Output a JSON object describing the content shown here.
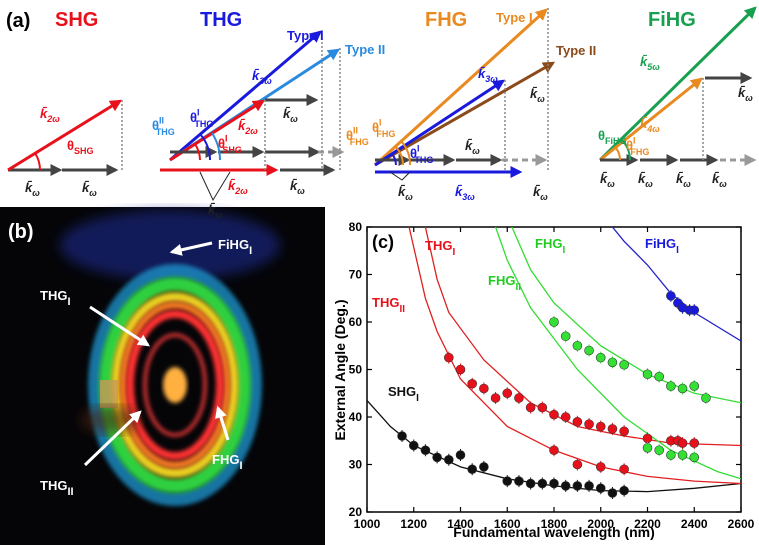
{
  "panel_labels": [
    "(a)",
    "(b)"
  ],
  "diagram": {
    "headings": [
      {
        "text": "SHG",
        "color": "#e8101a"
      },
      {
        "text": "THG",
        "color": "#1a1adc"
      },
      {
        "text": "FHG",
        "color": "#e88a20"
      },
      {
        "text": "FiHG",
        "color": "#18a050"
      }
    ],
    "labels": [
      {
        "text": "k̄",
        "sub": "2ω",
        "color": "#e8101a"
      },
      {
        "text": "θ",
        "sub": "SHG",
        "color": "#e8101a"
      },
      {
        "text": "k̄",
        "sub": "ω",
        "color": "#222"
      },
      {
        "text": "k̄",
        "sub": "ω",
        "color": "#222"
      },
      {
        "text": "Type I",
        "color": "#1a1adc"
      },
      {
        "text": "Type II",
        "color": "#2a8ae0"
      },
      {
        "text": "k̄",
        "sub": "3ω",
        "color": "#1a1adc"
      },
      {
        "text": "k̄",
        "sub": "2ω",
        "color": "#e8101a"
      },
      {
        "text": "k̄",
        "sub": "ω",
        "color": "#222"
      },
      {
        "text": "θ",
        "sup": "I",
        "sub": "THG",
        "color": "#1a1adc"
      },
      {
        "text": "θ",
        "sup": "II",
        "sub": "THG",
        "color": "#2a8ae0"
      },
      {
        "text": "θ",
        "sup": "I",
        "sub": "SHG",
        "color": "#e8101a"
      },
      {
        "text": "k̄",
        "sub": "2ω",
        "color": "#e8101a"
      },
      {
        "text": "k̄",
        "sub": "ω",
        "color": "#222"
      },
      {
        "text": "k̄",
        "sub": "ω",
        "color": "#222"
      },
      {
        "text": "Type I",
        "color": "#e88a20"
      },
      {
        "text": "Type II",
        "color": "#8b4a1a"
      },
      {
        "text": "k̄",
        "sub": "3ω",
        "color": "#1a1adc"
      },
      {
        "text": "k̄",
        "sub": "ω",
        "color": "#222"
      },
      {
        "text": "θ",
        "sup": "II",
        "sub": "FHG",
        "color": "#e88a20"
      },
      {
        "text": "θ",
        "sup": "I",
        "sub": "FHG",
        "color": "#e88a20"
      },
      {
        "text": "θ",
        "sup": "I",
        "sub": "THG",
        "color": "#1a1adc"
      },
      {
        "text": "k̄",
        "sub": "ω",
        "color": "#222"
      },
      {
        "text": "k̄",
        "sub": "ω",
        "color": "#222"
      },
      {
        "text": "k̄",
        "sub": "3ω",
        "color": "#1a1adc"
      },
      {
        "text": "k̄",
        "sub": "ω",
        "color": "#222"
      },
      {
        "text": "k̄",
        "sub": "5ω",
        "color": "#18a050"
      },
      {
        "text": "k̄",
        "sub": "4ω",
        "color": "#e88a20"
      },
      {
        "text": "k̄",
        "sub": "ω",
        "color": "#222"
      },
      {
        "text": "θ",
        "sub": "FiHG",
        "color": "#18a050"
      },
      {
        "text": "θ",
        "sup": "I",
        "sub": "FHG",
        "color": "#e88a20"
      },
      {
        "text": "k̄",
        "sub": "ω",
        "color": "#222"
      },
      {
        "text": "k̄",
        "sub": "ω",
        "color": "#222"
      },
      {
        "text": "k̄",
        "sub": "ω",
        "color": "#222"
      },
      {
        "text": "k̄",
        "sub": "ω",
        "color": "#222"
      }
    ]
  },
  "photo_labels": [
    {
      "text": "FiHG",
      "sub": "I"
    },
    {
      "text": "THG",
      "sub": "I"
    },
    {
      "text": "THG",
      "sub": "II"
    },
    {
      "text": "FHG",
      "sub": "I"
    }
  ],
  "chart_data": {
    "type": "scatter",
    "panel_label": "(c)",
    "x_label": "Fundamental wavelength (nm)",
    "y_label": "External Angle (Deg.)",
    "xlim": [
      1000,
      2600
    ],
    "ylim": [
      20,
      80
    ],
    "xticks": [
      1000,
      1200,
      1400,
      1600,
      1800,
      2000,
      2200,
      2400,
      2600
    ],
    "yticks": [
      20,
      30,
      40,
      50,
      60,
      70,
      80
    ],
    "annotations": [
      {
        "text": "THG",
        "sub": "I",
        "color": "#e8101a"
      },
      {
        "text": "THG",
        "sub": "II",
        "color": "#e8101a"
      },
      {
        "text": "FHG",
        "sub": "I",
        "color": "#22cc22"
      },
      {
        "text": "FHG",
        "sub": "II",
        "color": "#22cc22"
      },
      {
        "text": "FiHG",
        "sub": "I",
        "color": "#1a1adc"
      },
      {
        "text": "SHG",
        "sub": "I",
        "color": "#111111"
      }
    ],
    "series": [
      {
        "mode": "points",
        "color": "#111111",
        "x": [
          1150,
          1200,
          1250,
          1300,
          1350,
          1400,
          1450,
          1500,
          1600,
          1650,
          1700,
          1750,
          1800,
          1850,
          1900,
          1950,
          2000,
          2050,
          2100
        ],
        "values": [
          36,
          34,
          33,
          31.5,
          31,
          32,
          29,
          29.5,
          26.5,
          26.5,
          26,
          26,
          26,
          25.5,
          25.5,
          25.5,
          25,
          24,
          24.5
        ]
      },
      {
        "mode": "points",
        "color": "#e8101a",
        "x": [
          1350,
          1400,
          1450,
          1500,
          1550,
          1600,
          1650,
          1700,
          1750,
          1800,
          1850,
          1900,
          1950,
          2000,
          2050,
          2100,
          2200,
          2300,
          2330,
          2350,
          2400
        ],
        "values": [
          52.5,
          50,
          47,
          46,
          44,
          45,
          44,
          42,
          42,
          40.5,
          40,
          39,
          38.5,
          38,
          37.5,
          37,
          35.5,
          35,
          35,
          34.5,
          34.5
        ]
      },
      {
        "mode": "points",
        "color": "#e8101a",
        "x": [
          1800,
          1900,
          2000,
          2100
        ],
        "values": [
          33,
          30,
          29.5,
          29
        ]
      },
      {
        "mode": "points",
        "color": "#33e033",
        "x": [
          1800,
          1850,
          1900,
          1950,
          2000,
          2050,
          2100,
          2200,
          2250,
          2300,
          2350,
          2400,
          2450
        ],
        "values": [
          60,
          57,
          55,
          54,
          52.5,
          51.5,
          51,
          49,
          48.5,
          46.5,
          46,
          46.5,
          44
        ]
      },
      {
        "mode": "points",
        "color": "#33e033",
        "x": [
          2200,
          2250,
          2300,
          2350,
          2400
        ],
        "values": [
          33.5,
          33,
          32,
          32,
          31.5
        ]
      },
      {
        "mode": "points",
        "color": "#1a1adc",
        "x": [
          2300,
          2330,
          2350,
          2380,
          2400
        ],
        "values": [
          65.5,
          64,
          63,
          62.5,
          62.5
        ]
      },
      {
        "mode": "line",
        "color": "#111111",
        "x": [
          1000,
          1100,
          1200,
          1400,
          1600,
          1800,
          2000,
          2200,
          2400,
          2600
        ],
        "values": [
          43.5,
          38,
          34,
          29.5,
          27,
          25.5,
          24.5,
          24.3,
          25,
          26
        ]
      },
      {
        "mode": "line",
        "color": "#e02020",
        "x": [
          1180,
          1250,
          1300,
          1400,
          1600,
          1800,
          2000,
          2200,
          2400,
          2600
        ],
        "values": [
          80,
          65,
          58,
          48,
          38,
          33,
          29.5,
          27.5,
          26.5,
          26
        ]
      },
      {
        "mode": "line",
        "color": "#e02020",
        "x": [
          1250,
          1300,
          1350,
          1500,
          1700,
          1900,
          2100,
          2300,
          2600
        ],
        "values": [
          80,
          69,
          62,
          52,
          43,
          38,
          36,
          34.5,
          34
        ]
      },
      {
        "mode": "line",
        "color": "#33dd33",
        "x": [
          1550,
          1600,
          1700,
          1900,
          2100,
          2300,
          2500,
          2600
        ],
        "values": [
          80,
          73,
          63,
          50,
          40,
          33,
          28.5,
          27
        ]
      },
      {
        "mode": "line",
        "color": "#33dd33",
        "x": [
          1620,
          1700,
          1800,
          2000,
          2200,
          2400,
          2600
        ],
        "values": [
          80,
          71,
          64,
          55,
          49,
          45,
          43
        ]
      },
      {
        "mode": "line",
        "color": "#2222cc",
        "x": [
          2050,
          2100,
          2200,
          2300,
          2400,
          2600
        ],
        "values": [
          80,
          77,
          72,
          66,
          62,
          56
        ]
      }
    ]
  }
}
